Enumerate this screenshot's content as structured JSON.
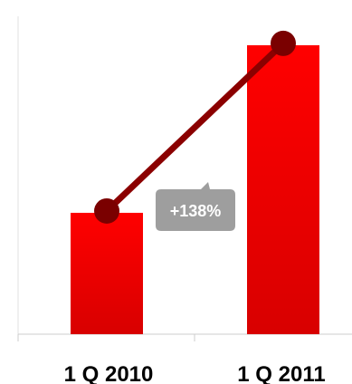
{
  "chart_data": {
    "type": "bar",
    "categories": [
      "1 Q 2010",
      "1 Q 2011"
    ],
    "values": [
      42,
      100
    ],
    "ylim": [
      0,
      110
    ],
    "grid": false,
    "overlay_line": true,
    "growth_label": "+138%",
    "colors": {
      "bar_top": "#ff0000",
      "bar_bottom": "#d80000",
      "line": "#8b0000",
      "marker": "#7a0000",
      "callout": "#9e9e9e",
      "axis": "#cccccc"
    }
  }
}
